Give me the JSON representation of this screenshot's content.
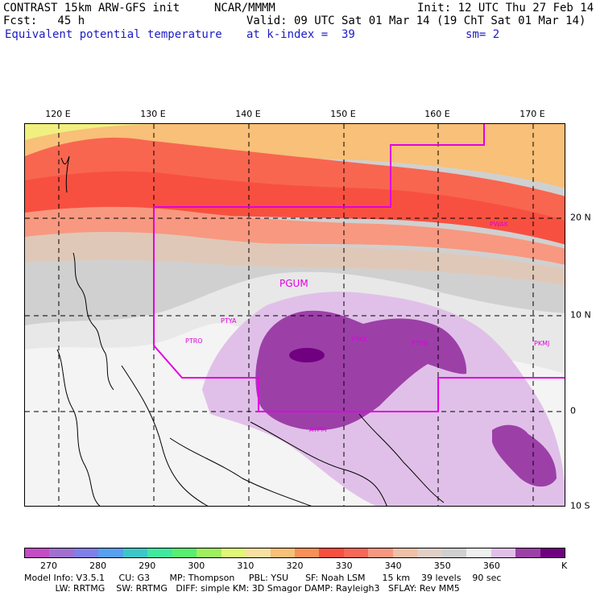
{
  "header": {
    "model": "CONTRAST 15km ARW-GFS init",
    "org": "NCAR/MMMM",
    "init": "Init: 12 UTC Thu 27 Feb 14",
    "fcst": "Fcst:   45 h",
    "valid": "Valid: 09 UTC Sat 01 Mar 14 (19 ChT Sat 01 Mar 14)",
    "field": "Equivalent potential temperature",
    "level": "at k-index =  39",
    "smooth": "sm= 2"
  },
  "map": {
    "lon_labels": [
      "120 E",
      "130 E",
      "140 E",
      "150 E",
      "160 E",
      "170 E"
    ],
    "lat_labels": [
      "20 N",
      "10 N",
      "0",
      "10 S"
    ],
    "stations": {
      "pwak": "PWAK",
      "pgum": "PGUM",
      "ptya": "PTYA",
      "ptro": "PTRO",
      "ptkk": "PTKK",
      "ptpn": "PTPN",
      "pkmj": "PKMJ",
      "aypm": "AYPM"
    }
  },
  "colorbar": {
    "colors": [
      "#c44cc4",
      "#a070d0",
      "#8080e8",
      "#58a0f0",
      "#3cc8c8",
      "#40e8a0",
      "#58f070",
      "#a0f060",
      "#e0f878",
      "#f8e0a0",
      "#f8c078",
      "#f89058",
      "#f85040",
      "#f86858",
      "#f89880",
      "#f0c0a8",
      "#e0d0c8",
      "#d0d0d0",
      "#f0f0f0",
      "#e0c0e8",
      "#9c40a8",
      "#700080"
    ],
    "labels": [
      "270",
      "280",
      "290",
      "300",
      "310",
      "320",
      "330",
      "340",
      "350",
      "360"
    ],
    "unit": "K"
  },
  "footer": {
    "line1": "Model Info: V3.5.1     CU: G3       MP: Thompson     PBL: YSU      SF: Noah LSM      15 km    39 levels    90 sec",
    "line2": "           LW: RRTMG    SW: RRTMG   DIFF: simple KM: 3D Smagor DAMP: Rayleigh3   SFLAY: Rev MM5"
  }
}
